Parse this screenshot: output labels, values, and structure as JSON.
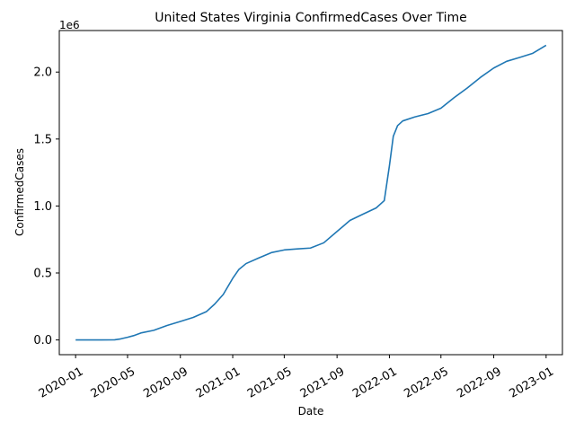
{
  "chart_data": {
    "type": "line",
    "title": "United States Virginia ConfirmedCases Over Time",
    "xlabel": "Date",
    "ylabel": "ConfirmedCases",
    "y_offset_text": "1e6",
    "line_color": "#1f77b4",
    "grid": false,
    "x_tick_labels": [
      "2020-01",
      "2020-05",
      "2020-09",
      "2021-01",
      "2021-05",
      "2021-09",
      "2022-01",
      "2022-05",
      "2022-09",
      "2023-01"
    ],
    "y_tick_labels": [
      "0.0",
      "0.5",
      "1.0",
      "1.5",
      "2.0"
    ],
    "y_ticks": [
      0,
      500000,
      1000000,
      1500000,
      2000000
    ],
    "xlim": [
      "2019-11-24",
      "2023-02-08"
    ],
    "ylim": [
      -110000,
      2310000
    ],
    "series": [
      {
        "name": "",
        "x": [
          "2020-01-01",
          "2020-03-01",
          "2020-04-01",
          "2020-04-15",
          "2020-05-01",
          "2020-05-15",
          "2020-06-01",
          "2020-07-01",
          "2020-08-01",
          "2020-09-01",
          "2020-10-01",
          "2020-11-01",
          "2020-11-20",
          "2020-12-10",
          "2021-01-01",
          "2021-01-15",
          "2021-02-01",
          "2021-03-01",
          "2021-04-01",
          "2021-05-01",
          "2021-06-01",
          "2021-07-01",
          "2021-08-01",
          "2021-09-01",
          "2021-10-01",
          "2021-11-01",
          "2021-12-01",
          "2021-12-20",
          "2022-01-01",
          "2022-01-10",
          "2022-01-20",
          "2022-02-01",
          "2022-03-01",
          "2022-04-01",
          "2022-05-01",
          "2022-06-01",
          "2022-07-01",
          "2022-08-01",
          "2022-09-01",
          "2022-10-01",
          "2022-11-01",
          "2022-12-01",
          "2023-01-01"
        ],
        "y": [
          0,
          0,
          1000,
          8000,
          20000,
          32000,
          52000,
          72000,
          108000,
          138000,
          168000,
          212000,
          268000,
          340000,
          460000,
          525000,
          570000,
          610000,
          652000,
          672000,
          680000,
          686000,
          725000,
          810000,
          892000,
          940000,
          985000,
          1040000,
          1300000,
          1520000,
          1600000,
          1635000,
          1665000,
          1690000,
          1730000,
          1810000,
          1880000,
          1960000,
          2030000,
          2080000,
          2110000,
          2140000,
          2200000
        ]
      }
    ]
  }
}
